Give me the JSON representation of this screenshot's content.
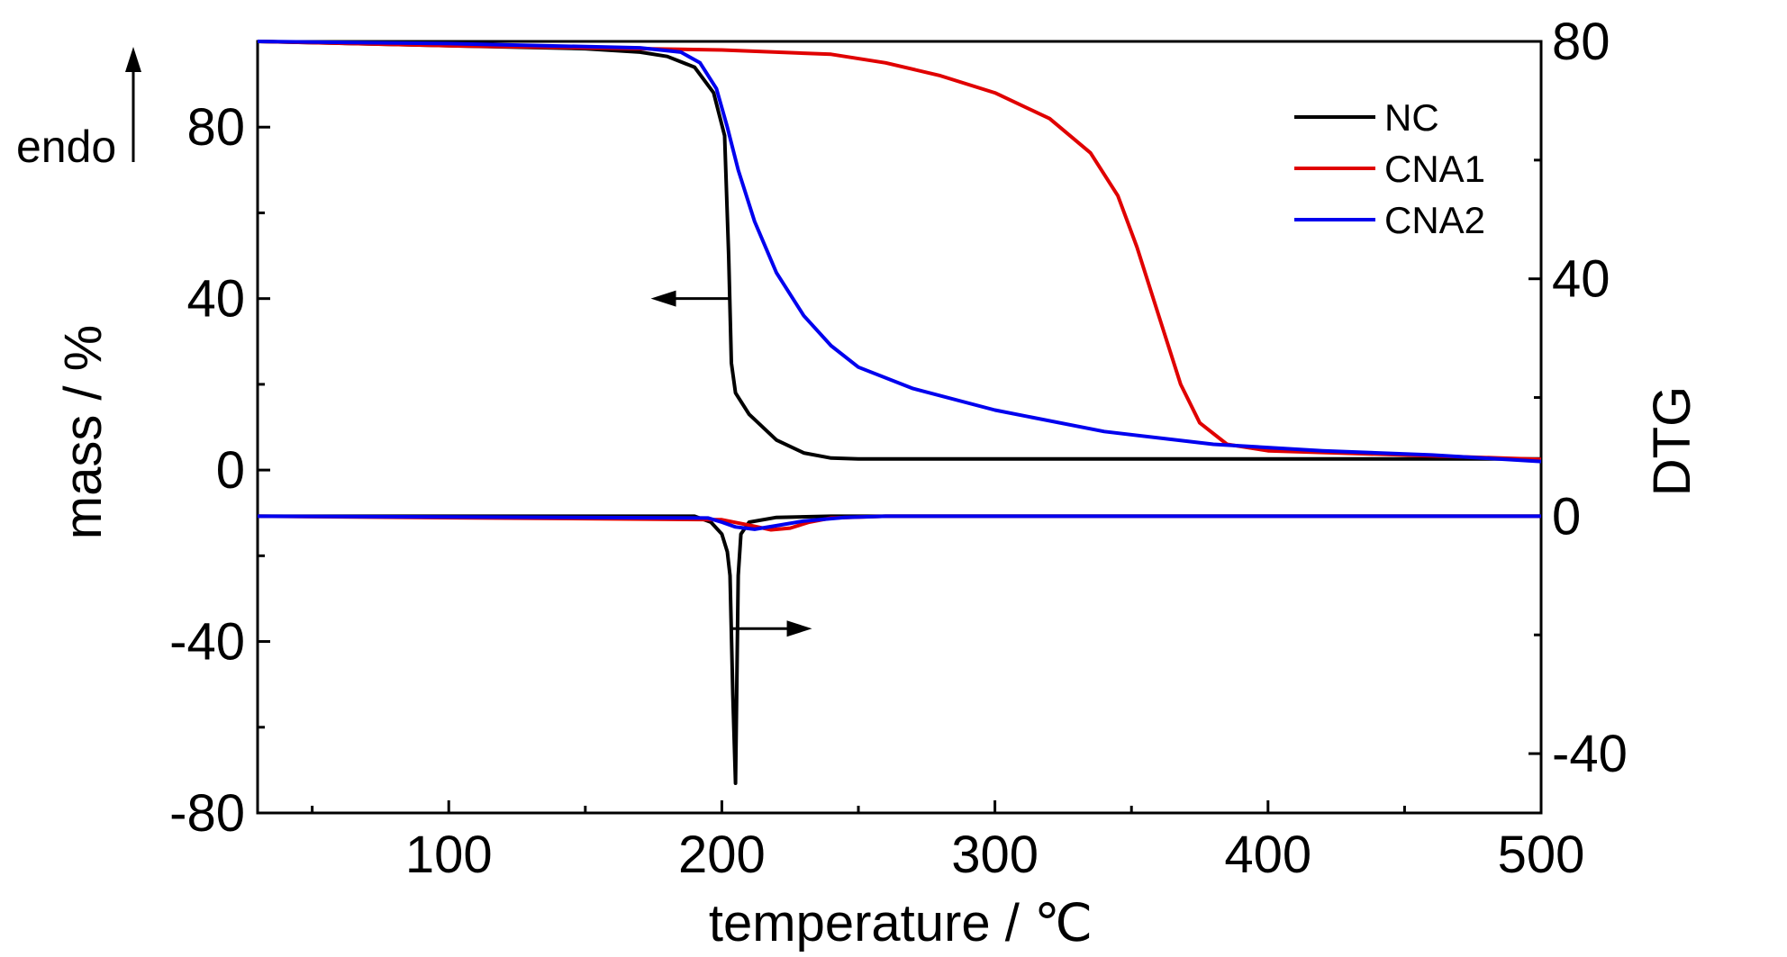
{
  "chart_data": {
    "type": "line",
    "xlabel": "temperature / ℃",
    "ylabel_left": "mass / %",
    "ylabel_right": "DTG",
    "xlim": [
      30,
      500
    ],
    "ylim_left": [
      -80,
      100
    ],
    "ylim_right": [
      -50,
      80
    ],
    "x_ticks": [
      100,
      200,
      300,
      400,
      500
    ],
    "y_ticks_left": [
      -80,
      -40,
      0,
      40,
      80
    ],
    "y_ticks_right": [
      -40,
      0,
      40,
      80
    ],
    "grid": false,
    "legend_position": "top-right",
    "annotation_endo": "endo",
    "series": [
      {
        "name": "NC",
        "color": "#000000",
        "axis": "left",
        "kind": "mass",
        "points": [
          [
            30,
            100
          ],
          [
            100,
            99
          ],
          [
            150,
            98.3
          ],
          [
            170,
            97.5
          ],
          [
            180,
            96.5
          ],
          [
            190,
            94
          ],
          [
            197,
            88
          ],
          [
            201,
            78
          ],
          [
            202.5,
            50
          ],
          [
            203.5,
            25
          ],
          [
            205,
            18
          ],
          [
            210,
            13
          ],
          [
            220,
            7
          ],
          [
            230,
            4
          ],
          [
            240,
            2.8
          ],
          [
            250,
            2.6
          ],
          [
            300,
            2.6
          ],
          [
            400,
            2.6
          ],
          [
            500,
            2.6
          ]
        ]
      },
      {
        "name": "CNA1",
        "color": "#e00000",
        "axis": "left",
        "kind": "mass",
        "points": [
          [
            30,
            100
          ],
          [
            100,
            99
          ],
          [
            200,
            98
          ],
          [
            240,
            97
          ],
          [
            260,
            95
          ],
          [
            280,
            92
          ],
          [
            300,
            88
          ],
          [
            320,
            82
          ],
          [
            335,
            74
          ],
          [
            345,
            64
          ],
          [
            352,
            52
          ],
          [
            360,
            36
          ],
          [
            368,
            20
          ],
          [
            375,
            11
          ],
          [
            385,
            6
          ],
          [
            400,
            4.5
          ],
          [
            450,
            3.5
          ],
          [
            500,
            2.5
          ]
        ]
      },
      {
        "name": "CNA2",
        "color": "#0000ee",
        "axis": "left",
        "kind": "mass",
        "points": [
          [
            30,
            100
          ],
          [
            100,
            99.5
          ],
          [
            170,
            98.5
          ],
          [
            185,
            97.5
          ],
          [
            192,
            95
          ],
          [
            198,
            89
          ],
          [
            202,
            80
          ],
          [
            206,
            70
          ],
          [
            212,
            58
          ],
          [
            220,
            46
          ],
          [
            230,
            36
          ],
          [
            240,
            29
          ],
          [
            250,
            24
          ],
          [
            270,
            19
          ],
          [
            300,
            14
          ],
          [
            340,
            9
          ],
          [
            380,
            6
          ],
          [
            420,
            4.5
          ],
          [
            460,
            3.5
          ],
          [
            500,
            2
          ]
        ]
      },
      {
        "name": "NC",
        "color": "#000000",
        "axis": "right",
        "kind": "dtg",
        "points": [
          [
            30,
            0
          ],
          [
            190,
            0
          ],
          [
            196,
            -1
          ],
          [
            200,
            -3
          ],
          [
            202,
            -6
          ],
          [
            203,
            -10
          ],
          [
            204,
            -30
          ],
          [
            205,
            -45
          ],
          [
            206,
            -10
          ],
          [
            207,
            -3
          ],
          [
            210,
            -1
          ],
          [
            220,
            -0.2
          ],
          [
            240,
            0
          ],
          [
            500,
            0
          ]
        ]
      },
      {
        "name": "CNA1",
        "color": "#e00000",
        "axis": "right",
        "kind": "dtg",
        "points": [
          [
            30,
            0
          ],
          [
            200,
            -0.6
          ],
          [
            210,
            -1.5
          ],
          [
            218,
            -2.3
          ],
          [
            225,
            -2.0
          ],
          [
            232,
            -1.0
          ],
          [
            240,
            -0.3
          ],
          [
            260,
            0
          ],
          [
            500,
            0
          ]
        ]
      },
      {
        "name": "CNA2",
        "color": "#0000ee",
        "axis": "right",
        "kind": "dtg",
        "points": [
          [
            30,
            0
          ],
          [
            195,
            -0.3
          ],
          [
            200,
            -1
          ],
          [
            205,
            -1.8
          ],
          [
            212,
            -2.2
          ],
          [
            220,
            -1.6
          ],
          [
            230,
            -0.8
          ],
          [
            245,
            -0.2
          ],
          [
            260,
            0
          ],
          [
            500,
            0
          ]
        ]
      }
    ],
    "arrows": [
      {
        "points_left": "mass curves",
        "at_x": 203,
        "at_y_left": 40
      },
      {
        "points_right": "DTG curves",
        "at_x": 204,
        "at_y_left": -37
      }
    ]
  }
}
